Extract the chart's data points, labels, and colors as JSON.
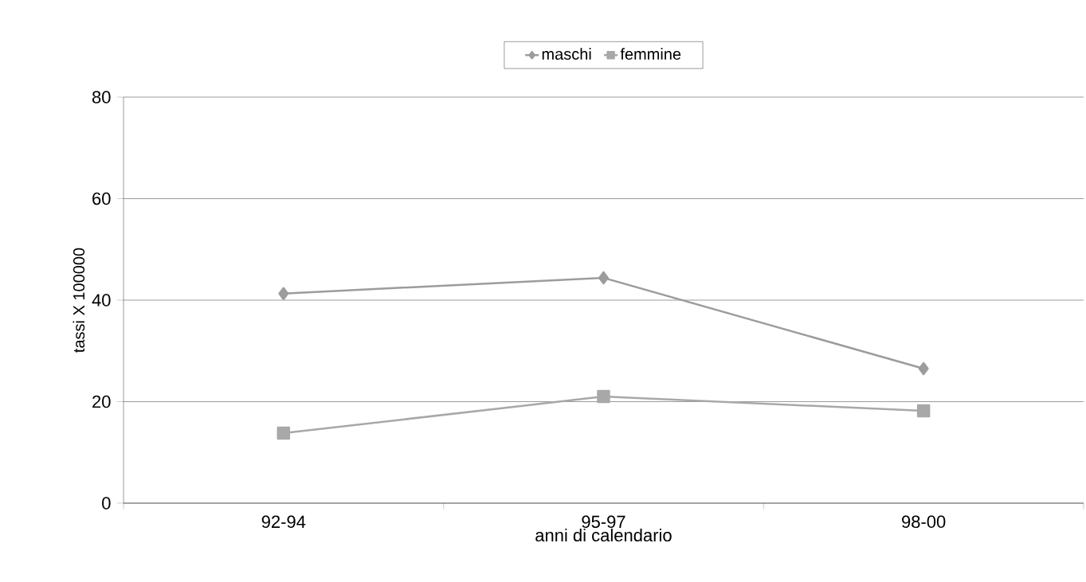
{
  "chart_data": {
    "type": "line",
    "xlabel": "anni di calendario",
    "ylabel": "tassi X 100000",
    "categories": [
      "92-94",
      "95-97",
      "98-00"
    ],
    "series": [
      {
        "name": "maschi",
        "color": "#9c9c9c",
        "marker": "diamond",
        "values": [
          41.3,
          44.4,
          26.5
        ]
      },
      {
        "name": "femmine",
        "color": "#a8a8a8",
        "marker": "square",
        "values": [
          13.8,
          21.0,
          18.2
        ]
      }
    ],
    "ylim": [
      0,
      80
    ],
    "yticks": [
      0,
      20,
      40,
      60,
      80
    ],
    "grid": "y",
    "legend": "top",
    "line_style": "solid"
  }
}
